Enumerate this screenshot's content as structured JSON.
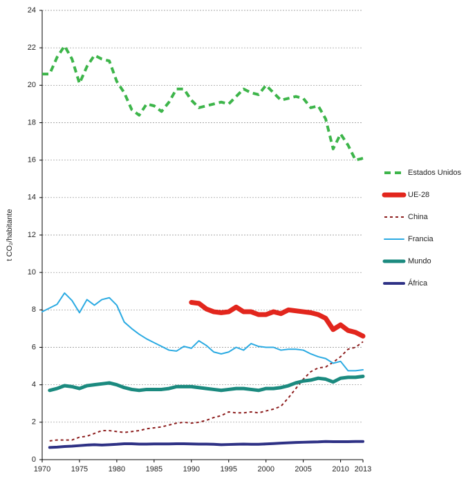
{
  "chart_data": {
    "type": "line",
    "y_label": "t CO₂/habitante",
    "x": [
      1970,
      1971,
      1972,
      1973,
      1974,
      1975,
      1976,
      1977,
      1978,
      1979,
      1980,
      1981,
      1982,
      1983,
      1984,
      1985,
      1986,
      1987,
      1988,
      1989,
      1990,
      1991,
      1992,
      1993,
      1994,
      1995,
      1996,
      1997,
      1998,
      1999,
      2000,
      2001,
      2002,
      2003,
      2004,
      2005,
      2006,
      2007,
      2008,
      2009,
      2010,
      2011,
      2012,
      2013
    ],
    "series": [
      {
        "name": "Estados Unidos",
        "color": "#3db54a",
        "width": 4,
        "dash": "9 6",
        "values": [
          20.6,
          20.6,
          21.5,
          22.1,
          21.4,
          20.1,
          21.0,
          21.6,
          21.4,
          21.3,
          20.2,
          19.6,
          18.7,
          18.4,
          19.0,
          18.9,
          18.6,
          19.1,
          19.8,
          19.8,
          19.2,
          18.8,
          18.9,
          19.0,
          19.1,
          19.0,
          19.4,
          19.8,
          19.6,
          19.5,
          20.0,
          19.6,
          19.2,
          19.3,
          19.4,
          19.3,
          18.8,
          18.9,
          18.2,
          16.6,
          17.4,
          16.8,
          16.0,
          16.1
        ]
      },
      {
        "name": "UE-28",
        "color": "#e2261d",
        "width": 7,
        "dash": "none",
        "values": [
          null,
          null,
          null,
          null,
          null,
          null,
          null,
          null,
          null,
          null,
          null,
          null,
          null,
          null,
          null,
          null,
          null,
          null,
          null,
          null,
          8.4,
          8.35,
          8.05,
          7.9,
          7.85,
          7.9,
          8.15,
          7.9,
          7.9,
          7.75,
          7.75,
          7.9,
          7.8,
          8.0,
          7.95,
          7.9,
          7.85,
          7.75,
          7.55,
          6.95,
          7.2,
          6.9,
          6.8,
          6.6
        ]
      },
      {
        "name": "China",
        "color": "#8c1c1c",
        "width": 2,
        "dash": "4 4",
        "values": [
          null,
          1.0,
          1.05,
          1.05,
          1.05,
          1.2,
          1.25,
          1.4,
          1.55,
          1.55,
          1.5,
          1.45,
          1.5,
          1.55,
          1.65,
          1.7,
          1.75,
          1.85,
          1.95,
          2.0,
          1.95,
          2.0,
          2.1,
          2.25,
          2.35,
          2.55,
          2.5,
          2.5,
          2.55,
          2.5,
          2.6,
          2.7,
          2.85,
          3.3,
          3.8,
          4.3,
          4.7,
          4.9,
          4.95,
          5.2,
          5.5,
          5.9,
          6.0,
          6.3
        ]
      },
      {
        "name": "Francia",
        "color": "#2aaae2",
        "width": 2,
        "dash": "none",
        "values": [
          7.9,
          8.1,
          8.3,
          8.9,
          8.5,
          7.85,
          8.55,
          8.25,
          8.55,
          8.65,
          8.25,
          7.35,
          7.0,
          6.7,
          6.45,
          6.25,
          6.05,
          5.85,
          5.8,
          6.05,
          5.95,
          6.35,
          6.1,
          5.75,
          5.65,
          5.75,
          6.0,
          5.85,
          6.2,
          6.05,
          6.0,
          6.0,
          5.85,
          5.9,
          5.9,
          5.85,
          5.65,
          5.5,
          5.4,
          5.15,
          5.25,
          4.75,
          4.75,
          4.8
        ]
      },
      {
        "name": "Mundo",
        "color": "#1b8a7f",
        "width": 5,
        "dash": "none",
        "values": [
          null,
          3.7,
          3.8,
          3.95,
          3.9,
          3.8,
          3.95,
          4.0,
          4.05,
          4.1,
          4.0,
          3.85,
          3.75,
          3.7,
          3.75,
          3.75,
          3.75,
          3.8,
          3.9,
          3.9,
          3.9,
          3.85,
          3.8,
          3.75,
          3.7,
          3.75,
          3.8,
          3.8,
          3.75,
          3.7,
          3.8,
          3.8,
          3.85,
          3.95,
          4.1,
          4.2,
          4.25,
          4.35,
          4.3,
          4.15,
          4.35,
          4.4,
          4.4,
          4.45
        ]
      },
      {
        "name": "África",
        "color": "#2e3185",
        "width": 4,
        "dash": "none",
        "values": [
          null,
          0.65,
          0.67,
          0.7,
          0.72,
          0.75,
          0.78,
          0.8,
          0.78,
          0.8,
          0.82,
          0.85,
          0.85,
          0.83,
          0.83,
          0.84,
          0.84,
          0.84,
          0.85,
          0.85,
          0.84,
          0.83,
          0.83,
          0.82,
          0.8,
          0.81,
          0.82,
          0.83,
          0.82,
          0.82,
          0.84,
          0.86,
          0.88,
          0.9,
          0.92,
          0.93,
          0.94,
          0.95,
          0.97,
          0.96,
          0.96,
          0.96,
          0.97,
          0.97
        ]
      }
    ],
    "xlim": [
      1970,
      2013
    ],
    "xticks": [
      1970,
      1975,
      1980,
      1985,
      1990,
      1995,
      2000,
      2005,
      2010,
      2013
    ],
    "ylim": [
      0,
      24
    ],
    "yticks": [
      0,
      2,
      4,
      6,
      8,
      10,
      12,
      14,
      16,
      18,
      20,
      22,
      24
    ],
    "grid": true,
    "legend": "right"
  }
}
